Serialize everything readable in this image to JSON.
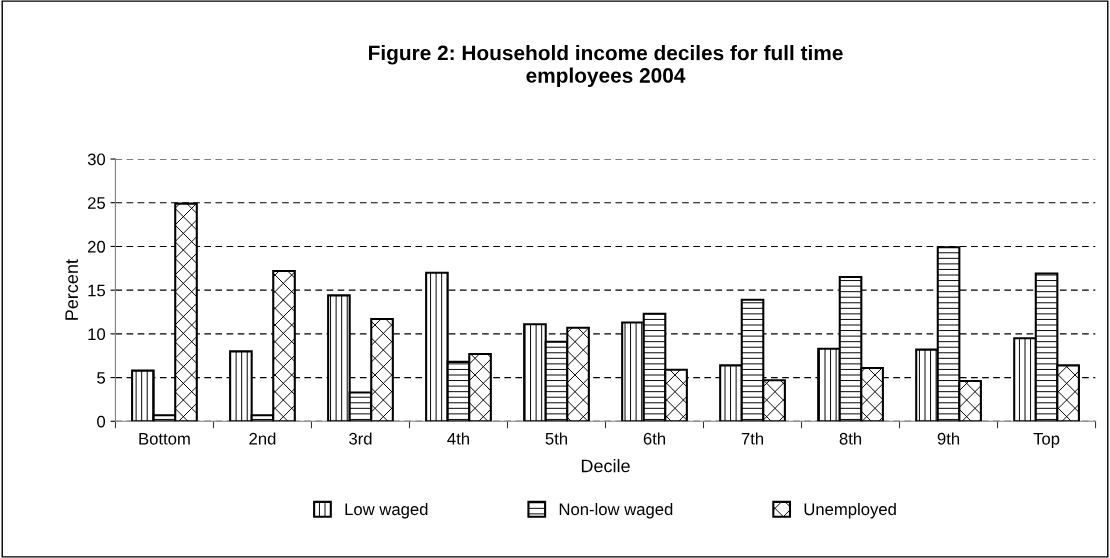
{
  "chart_data": {
    "type": "bar",
    "title": "Figure 2: Household income deciles for full time\nemployees 2004",
    "xlabel": "Decile",
    "ylabel": "Percent",
    "categories": [
      "Bottom",
      "2nd",
      "3rd",
      "4th",
      "5th",
      "6th",
      "7th",
      "8th",
      "9th",
      "Top"
    ],
    "series": [
      {
        "name": "Low waged",
        "color": "#000000",
        "values": [
          5.8,
          8.0,
          14.4,
          17.0,
          11.1,
          11.3,
          6.4,
          8.3,
          8.2,
          9.5
        ]
      },
      {
        "name": "Non-low waged",
        "color": "#000000",
        "values": [
          0.7,
          0.7,
          3.3,
          6.8,
          9.1,
          12.3,
          13.9,
          16.5,
          19.9,
          16.9
        ]
      },
      {
        "name": "Unemployed",
        "color": "#000000",
        "values": [
          24.9,
          17.2,
          11.7,
          7.7,
          10.7,
          5.9,
          4.7,
          6.1,
          4.6,
          6.4
        ]
      }
    ],
    "ylim": [
      0,
      30
    ],
    "yticks": [
      0,
      5,
      10,
      15,
      20,
      25,
      30
    ],
    "grid": "y",
    "legend": "bottom"
  }
}
